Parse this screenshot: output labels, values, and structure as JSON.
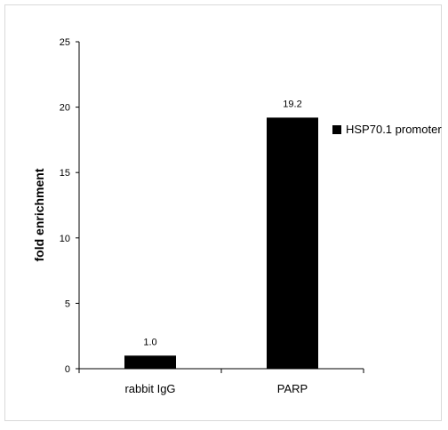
{
  "chart_data": {
    "type": "bar",
    "title": "",
    "xlabel": "",
    "ylabel": "fold enrichment",
    "categories": [
      "rabbit IgG",
      "PARP"
    ],
    "series": [
      {
        "name": "HSP70.1 promoter",
        "values": [
          1.0,
          19.2
        ],
        "color": "#000000"
      }
    ],
    "data_labels": [
      "1.0",
      "19.2"
    ],
    "ylim": [
      0,
      25
    ],
    "yticks": [
      0,
      5,
      10,
      15,
      20,
      25
    ],
    "grid": false,
    "legend_position": "right"
  },
  "colors": {
    "bar": "#000000",
    "axis": "#000000",
    "frame": "#d9d9d9",
    "text": "#000000"
  }
}
